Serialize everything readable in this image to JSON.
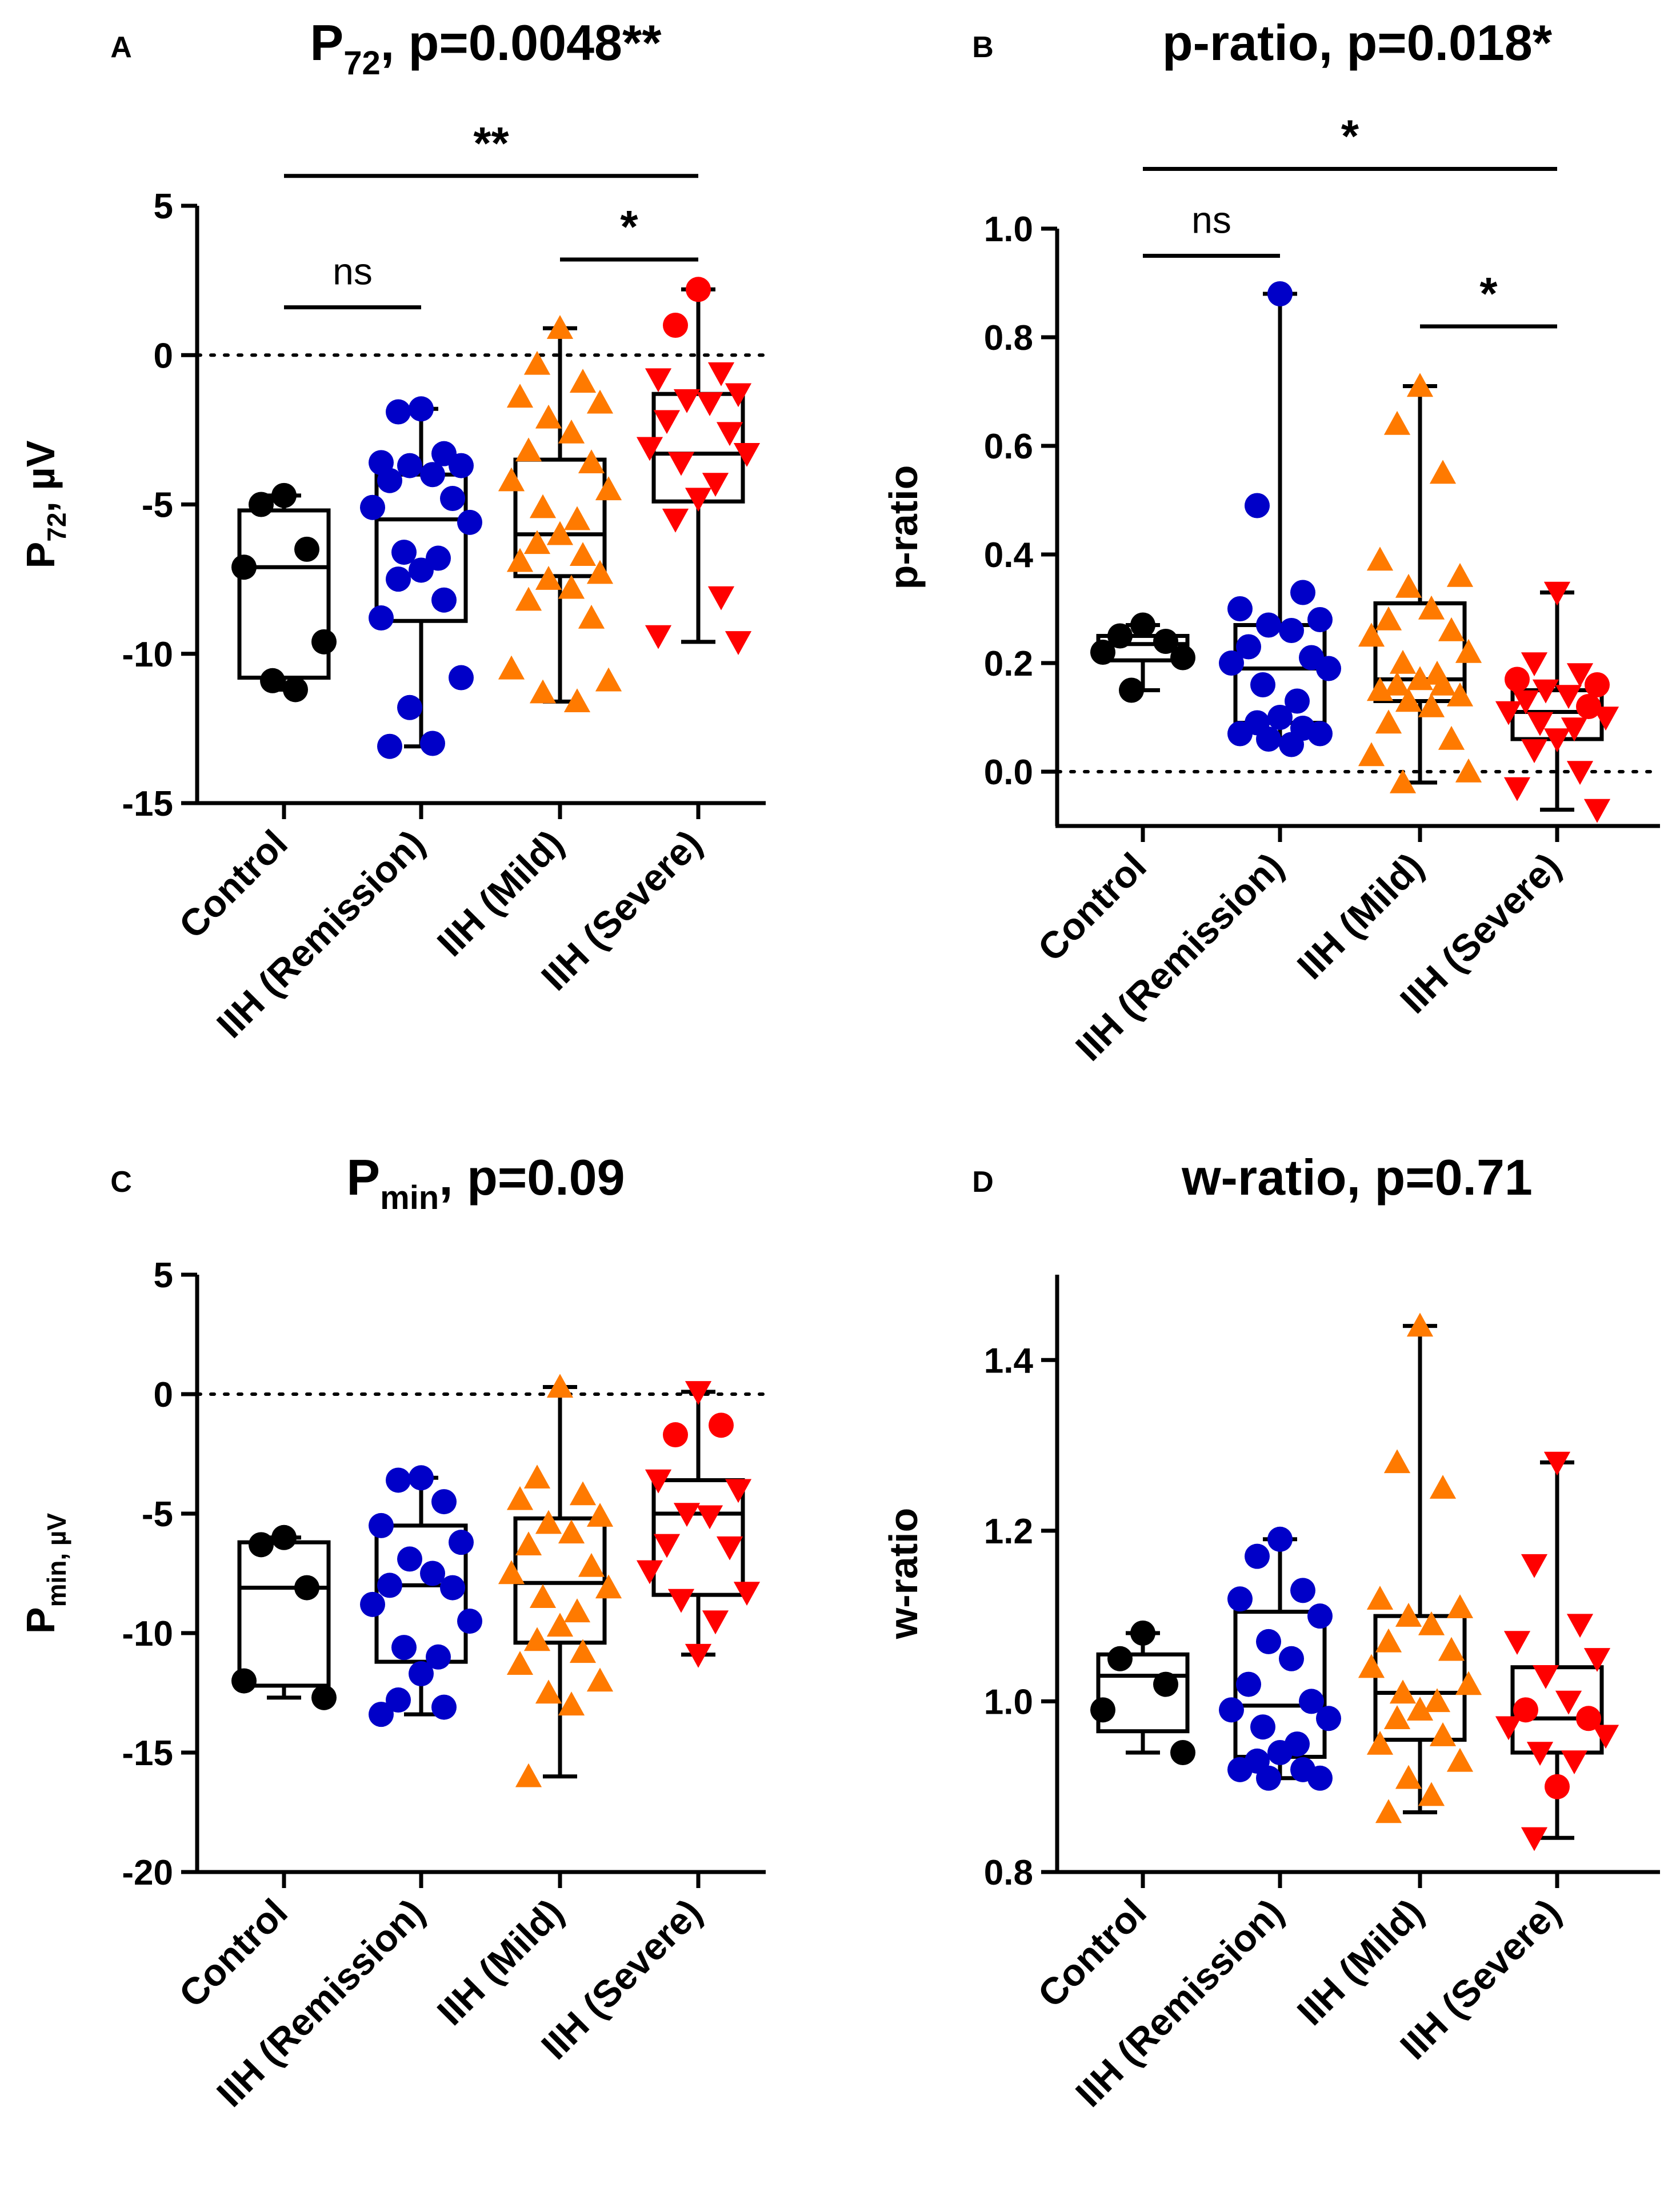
{
  "figure": {
    "categories": [
      "Control",
      "IIH (Remission)",
      "IIH (Mild)",
      "IIH (Severe)"
    ],
    "colors": {
      "Control": "#000000",
      "IIH (Remission)": "#0000c8",
      "IIH (Mild)": "#ff7a00",
      "IIH (Severe)": "#ff0000"
    },
    "markers": {
      "Control": "circle",
      "IIH (Remission)": "circle",
      "IIH (Mild)": "triangle-up",
      "IIH (Severe)": "triangle-down"
    }
  },
  "chart_data": [
    {
      "panel": "A",
      "type": "box",
      "title": {
        "main": "P",
        "sub": "72",
        "rest": ", p=0.0048**"
      },
      "ylabel": {
        "main": "P",
        "sub": "72",
        "rest": ", µV"
      },
      "yticks": [
        5,
        0,
        -5,
        -10,
        -15
      ],
      "ytick_labels": [
        "5",
        "0",
        "-5",
        "-10",
        "-15"
      ],
      "ylim": [
        -15,
        5
      ],
      "reference_line": 0,
      "categories": [
        "Control",
        "IIH (Remission)",
        "IIH (Mild)",
        "IIH (Severe)"
      ],
      "boxes": [
        {
          "min": -11.2,
          "q1": -10.8,
          "median": -7.1,
          "q3": -5.2,
          "max": -4.7
        },
        {
          "min": -13.1,
          "q1": -8.9,
          "median": -5.5,
          "q3": -4.0,
          "max": -1.8
        },
        {
          "min": -11.6,
          "q1": -7.4,
          "median": -6.0,
          "q3": -3.5,
          "max": 0.9
        },
        {
          "min": -9.6,
          "q1": -4.9,
          "median": -3.3,
          "q3": -1.3,
          "max": 2.2
        }
      ],
      "points": [
        [
          -4.7,
          -5.0,
          -6.5,
          -7.1,
          -9.6,
          -10.9,
          -11.2
        ],
        [
          -1.8,
          -1.9,
          -3.3,
          -3.6,
          -3.7,
          -3.7,
          -4.0,
          -4.2,
          -4.8,
          -5.1,
          -5.6,
          -6.6,
          -6.8,
          -7.2,
          -7.5,
          -8.2,
          -8.8,
          -10.8,
          -11.8,
          -13.0,
          -13.1
        ],
        [
          0.9,
          -0.3,
          -0.9,
          -1.4,
          -1.6,
          -2.1,
          -2.6,
          -3.2,
          -3.6,
          -4.2,
          -4.5,
          -5.1,
          -5.5,
          -6.0,
          -6.3,
          -6.7,
          -6.9,
          -7.3,
          -7.5,
          -7.8,
          -8.2,
          -8.8,
          -10.5,
          -10.9,
          -11.3,
          -11.6
        ],
        [
          2.2,
          1.0,
          -0.6,
          -0.8,
          -1.3,
          -1.5,
          -1.6,
          -2.2,
          -2.6,
          -3.1,
          -3.3,
          -3.6,
          -4.3,
          -4.8,
          -5.5,
          -8.1,
          -9.4,
          -9.6
        ]
      ],
      "point_colors_override": {
        "3": {
          "0": "#ff0000",
          "1": "#ff0000"
        }
      },
      "severe_circle_indices": [
        0,
        1
      ],
      "brackets": [
        {
          "from": 0,
          "to": 3,
          "level": 6,
          "label": "**"
        },
        {
          "from": 0,
          "to": 1,
          "level": 1.6,
          "label": "ns"
        },
        {
          "from": 2,
          "to": 3,
          "level": 3.2,
          "label": "*"
        }
      ]
    },
    {
      "panel": "B",
      "type": "box",
      "title": {
        "main": "p-ratio, p=0.018*",
        "sub": "",
        "rest": ""
      },
      "ylabel": {
        "main": "p-ratio",
        "sub": "",
        "rest": ""
      },
      "yticks": [
        1.0,
        0.8,
        0.6,
        0.4,
        0.2,
        0.0
      ],
      "ytick_labels": [
        "1.0",
        "0.8",
        "0.6",
        "0.4",
        "0.2",
        "0.0"
      ],
      "ylim": [
        -0.1,
        1.0
      ],
      "reference_line": 0,
      "categories": [
        "Control",
        "IIH (Remission)",
        "IIH (Mild)",
        "IIH (Severe)"
      ],
      "boxes": [
        {
          "min": 0.15,
          "q1": 0.205,
          "median": 0.235,
          "q3": 0.25,
          "max": 0.27
        },
        {
          "min": 0.05,
          "q1": 0.09,
          "median": 0.19,
          "q3": 0.27,
          "max": 0.88
        },
        {
          "min": -0.02,
          "q1": 0.13,
          "median": 0.17,
          "q3": 0.31,
          "max": 0.71
        },
        {
          "min": -0.07,
          "q1": 0.06,
          "median": 0.11,
          "q3": 0.15,
          "max": 0.33
        }
      ],
      "points": [
        [
          0.27,
          0.25,
          0.24,
          0.22,
          0.21,
          0.15
        ],
        [
          0.88,
          0.49,
          0.33,
          0.3,
          0.28,
          0.27,
          0.26,
          0.23,
          0.21,
          0.2,
          0.19,
          0.16,
          0.13,
          0.1,
          0.09,
          0.08,
          0.07,
          0.07,
          0.06,
          0.05
        ],
        [
          0.71,
          0.64,
          0.55,
          0.39,
          0.36,
          0.34,
          0.3,
          0.28,
          0.26,
          0.25,
          0.22,
          0.2,
          0.18,
          0.17,
          0.16,
          0.16,
          0.15,
          0.14,
          0.13,
          0.12,
          0.09,
          0.06,
          0.03,
          0.0,
          -0.02
        ],
        [
          0.33,
          0.2,
          0.18,
          0.17,
          0.16,
          0.15,
          0.14,
          0.13,
          0.12,
          0.11,
          0.1,
          0.09,
          0.08,
          0.06,
          0.04,
          0.0,
          -0.03,
          -0.07
        ]
      ],
      "severe_circle_indices": [
        3,
        4,
        8
      ],
      "brackets": [
        {
          "from": 0,
          "to": 3,
          "level": 1.11,
          "label": "*"
        },
        {
          "from": 0,
          "to": 1,
          "level": 0.95,
          "label": "ns"
        },
        {
          "from": 2,
          "to": 3,
          "level": 0.82,
          "label": "*"
        }
      ]
    },
    {
      "panel": "C",
      "type": "box",
      "title": {
        "main": "P",
        "sub": "min",
        "rest": ", p=0.09"
      },
      "ylabel": {
        "main": "P",
        "sub": "min, µV",
        "rest": ""
      },
      "yticks": [
        5,
        0,
        -5,
        -10,
        -15,
        -20
      ],
      "ytick_labels": [
        "5",
        "0",
        "-5",
        "-10",
        "-15",
        "-20"
      ],
      "ylim": [
        -20,
        5
      ],
      "reference_line": 0,
      "categories": [
        "Control",
        "IIH (Remission)",
        "IIH (Mild)",
        "IIH (Severe)"
      ],
      "boxes": [
        {
          "min": -12.7,
          "q1": -12.2,
          "median": -8.1,
          "q3": -6.2,
          "max": -6.0
        },
        {
          "min": -13.4,
          "q1": -11.2,
          "median": -8.0,
          "q3": -5.5,
          "max": -3.5
        },
        {
          "min": -16.0,
          "q1": -10.4,
          "median": -7.9,
          "q3": -5.2,
          "max": 0.3
        },
        {
          "min": -10.9,
          "q1": -8.4,
          "median": -5.0,
          "q3": -3.6,
          "max": 0.1
        }
      ],
      "points": [
        [
          -6.0,
          -6.3,
          -8.1,
          -12.0,
          -12.7
        ],
        [
          -3.5,
          -3.6,
          -4.5,
          -5.5,
          -6.2,
          -6.9,
          -7.5,
          -8.0,
          -8.1,
          -8.8,
          -9.5,
          -10.6,
          -11.0,
          -11.7,
          -12.8,
          -13.1,
          -13.4
        ],
        [
          0.3,
          -3.5,
          -4.2,
          -4.4,
          -5.1,
          -5.4,
          -5.8,
          -6.3,
          -7.2,
          -7.5,
          -8.1,
          -8.5,
          -9.1,
          -9.7,
          -10.3,
          -10.8,
          -11.3,
          -12.0,
          -12.5,
          -13.0,
          -16.0
        ],
        [
          0.1,
          -1.7,
          -1.3,
          -3.6,
          -4.0,
          -5.0,
          -5.1,
          -6.3,
          -6.4,
          -7.4,
          -8.3,
          -8.6,
          -9.5,
          -10.9
        ]
      ],
      "severe_circle_indices": [
        1,
        2
      ],
      "brackets": []
    },
    {
      "panel": "D",
      "type": "box",
      "title": {
        "main": "w-ratio, p=0.71",
        "sub": "",
        "rest": ""
      },
      "ylabel": {
        "main": "w-ratio",
        "sub": "",
        "rest": ""
      },
      "yticks": [
        1.4,
        1.2,
        1.0,
        0.8
      ],
      "ytick_labels": [
        "1.4",
        "1.2",
        "1.0",
        "0.8"
      ],
      "ylim": [
        0.8,
        1.5
      ],
      "reference_line": null,
      "categories": [
        "Control",
        "IIH (Remission)",
        "IIH (Mild)",
        "IIH (Severe)"
      ],
      "boxes": [
        {
          "min": 0.94,
          "q1": 0.965,
          "median": 1.03,
          "q3": 1.055,
          "max": 1.08
        },
        {
          "min": 0.91,
          "q1": 0.935,
          "median": 0.995,
          "q3": 1.105,
          "max": 1.19
        },
        {
          "min": 0.87,
          "q1": 0.955,
          "median": 1.01,
          "q3": 1.1,
          "max": 1.44
        },
        {
          "min": 0.84,
          "q1": 0.94,
          "median": 0.98,
          "q3": 1.04,
          "max": 1.28
        }
      ],
      "points": [
        [
          1.08,
          1.05,
          1.02,
          0.99,
          0.94
        ],
        [
          1.19,
          1.17,
          1.13,
          1.12,
          1.1,
          1.07,
          1.05,
          1.02,
          1.0,
          0.99,
          0.98,
          0.97,
          0.95,
          0.94,
          0.93,
          0.92,
          0.92,
          0.91,
          0.91
        ],
        [
          1.44,
          1.28,
          1.25,
          1.12,
          1.11,
          1.1,
          1.09,
          1.07,
          1.06,
          1.04,
          1.02,
          1.01,
          1.0,
          0.99,
          0.98,
          0.96,
          0.95,
          0.93,
          0.91,
          0.89,
          0.87
        ],
        [
          1.28,
          1.16,
          1.09,
          1.07,
          1.05,
          1.03,
          1.0,
          0.99,
          0.98,
          0.97,
          0.96,
          0.94,
          0.93,
          0.9,
          0.84
        ]
      ],
      "severe_circle_indices": [
        7,
        8,
        13
      ],
      "brackets": []
    }
  ]
}
